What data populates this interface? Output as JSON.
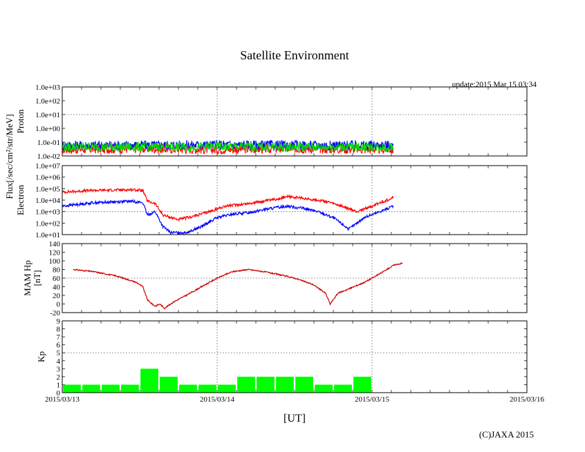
{
  "page": {
    "title": "Satellite Environment",
    "update_text": "update:2015 Mar 15 03:34",
    "xlabel": "[UT]",
    "copyright": "(C)JAXA 2015",
    "flux_label": "Flux[/sec/cm²/str/MeV]"
  },
  "chart_data": [
    {
      "id": "proton",
      "type": "line",
      "ylabel": "Proton",
      "yscale": "log",
      "ylim": [
        0.01,
        1000
      ],
      "yticks": [
        "1.0e-02",
        "1.0e-01",
        "1.0e+00",
        "1.0e+01",
        "1.0e+02",
        "1.0e+03"
      ],
      "xlim_days": [
        0,
        3
      ],
      "data_end_day": 2.14,
      "series": [
        {
          "color": "#ff0000",
          "note_level": 0.03,
          "values": [
            [
              0,
              0.03
            ],
            [
              0.5,
              0.035
            ],
            [
              1.0,
              0.03
            ],
            [
              1.5,
              0.035
            ],
            [
              2.14,
              0.03
            ]
          ]
        },
        {
          "color": "#0000ff",
          "values": [
            [
              0,
              0.06
            ],
            [
              0.5,
              0.06
            ],
            [
              1.0,
              0.065
            ],
            [
              1.5,
              0.06
            ],
            [
              2.14,
              0.06
            ]
          ]
        },
        {
          "color": "#00dd00",
          "values": [
            [
              0,
              0.045
            ],
            [
              0.5,
              0.045
            ],
            [
              1.0,
              0.046
            ],
            [
              1.5,
              0.045
            ],
            [
              2.14,
              0.045
            ]
          ]
        }
      ]
    },
    {
      "id": "electron",
      "type": "line",
      "ylabel": "Electron",
      "yscale": "log",
      "ylim": [
        10,
        10000000
      ],
      "yticks": [
        "1.0e+01",
        "1.0e+02",
        "1.0e+03",
        "1.0e+04",
        "1.0e+05",
        "1.0e+06",
        "1.0e+07"
      ],
      "xlim_days": [
        0,
        3
      ],
      "series": [
        {
          "color": "#ff0000",
          "values": [
            [
              0,
              50000
            ],
            [
              0.2,
              70000
            ],
            [
              0.45,
              80000
            ],
            [
              0.52,
              70000
            ],
            [
              0.55,
              8000
            ],
            [
              0.6,
              5000
            ],
            [
              0.65,
              500
            ],
            [
              0.75,
              200
            ],
            [
              0.85,
              400
            ],
            [
              0.95,
              1000
            ],
            [
              1.05,
              3000
            ],
            [
              1.2,
              5000
            ],
            [
              1.35,
              10000
            ],
            [
              1.45,
              20000
            ],
            [
              1.55,
              15000
            ],
            [
              1.7,
              8000
            ],
            [
              1.8,
              3000
            ],
            [
              1.9,
              1000
            ],
            [
              2.0,
              3000
            ],
            [
              2.1,
              10000
            ],
            [
              2.14,
              20000
            ]
          ]
        },
        {
          "color": "#0000ff",
          "values": [
            [
              0,
              3000
            ],
            [
              0.2,
              6000
            ],
            [
              0.45,
              8000
            ],
            [
              0.52,
              6000
            ],
            [
              0.55,
              500
            ],
            [
              0.6,
              1000
            ],
            [
              0.65,
              50
            ],
            [
              0.7,
              15
            ],
            [
              0.8,
              15
            ],
            [
              0.9,
              50
            ],
            [
              1.0,
              300
            ],
            [
              1.1,
              600
            ],
            [
              1.2,
              800
            ],
            [
              1.3,
              1500
            ],
            [
              1.45,
              3000
            ],
            [
              1.55,
              2000
            ],
            [
              1.65,
              1000
            ],
            [
              1.75,
              300
            ],
            [
              1.8,
              100
            ],
            [
              1.85,
              30
            ],
            [
              1.95,
              300
            ],
            [
              2.05,
              1000
            ],
            [
              2.14,
              3000
            ]
          ]
        }
      ]
    },
    {
      "id": "mam_hp",
      "type": "line",
      "ylabel": "MAM Hp [nT]",
      "ylabel_lines": [
        "MAM Hp",
        "[nT]"
      ],
      "ylim": [
        -20,
        140
      ],
      "yticks": [
        "-20",
        "0",
        "20",
        "40",
        "60",
        "80",
        "100",
        "120",
        "140"
      ],
      "xlim_days": [
        0,
        3
      ],
      "series": [
        {
          "color": "#cc0000",
          "values": [
            [
              0.07,
              80
            ],
            [
              0.2,
              75
            ],
            [
              0.35,
              65
            ],
            [
              0.48,
              50
            ],
            [
              0.52,
              40
            ],
            [
              0.55,
              10
            ],
            [
              0.58,
              0
            ],
            [
              0.6,
              -5
            ],
            [
              0.63,
              0
            ],
            [
              0.66,
              -10
            ],
            [
              0.72,
              5
            ],
            [
              0.8,
              20
            ],
            [
              0.9,
              40
            ],
            [
              1.0,
              60
            ],
            [
              1.1,
              75
            ],
            [
              1.2,
              80
            ],
            [
              1.3,
              75
            ],
            [
              1.4,
              68
            ],
            [
              1.5,
              60
            ],
            [
              1.62,
              45
            ],
            [
              1.66,
              35
            ],
            [
              1.7,
              25
            ],
            [
              1.73,
              0
            ],
            [
              1.78,
              25
            ],
            [
              1.85,
              35
            ],
            [
              1.95,
              50
            ],
            [
              2.05,
              70
            ],
            [
              2.14,
              90
            ],
            [
              2.2,
              95
            ]
          ]
        }
      ]
    },
    {
      "id": "kp",
      "type": "bar",
      "ylabel": "Kp",
      "ylim": [
        0,
        9
      ],
      "yticks": [
        "0",
        "1",
        "2",
        "3",
        "4",
        "5",
        "6",
        "7",
        "8",
        "9"
      ],
      "xlim_days": [
        0,
        3
      ],
      "bar_width_days": 0.125,
      "color": "#00ff00",
      "values": [
        1,
        1,
        1,
        1,
        3,
        2,
        1,
        1,
        1,
        2,
        2,
        2,
        2,
        1,
        1,
        2
      ],
      "hline": 5,
      "xtick_labels": [
        "2015/03/13",
        "2015/03/14",
        "2015/03/15",
        "2015/03/16"
      ]
    }
  ]
}
